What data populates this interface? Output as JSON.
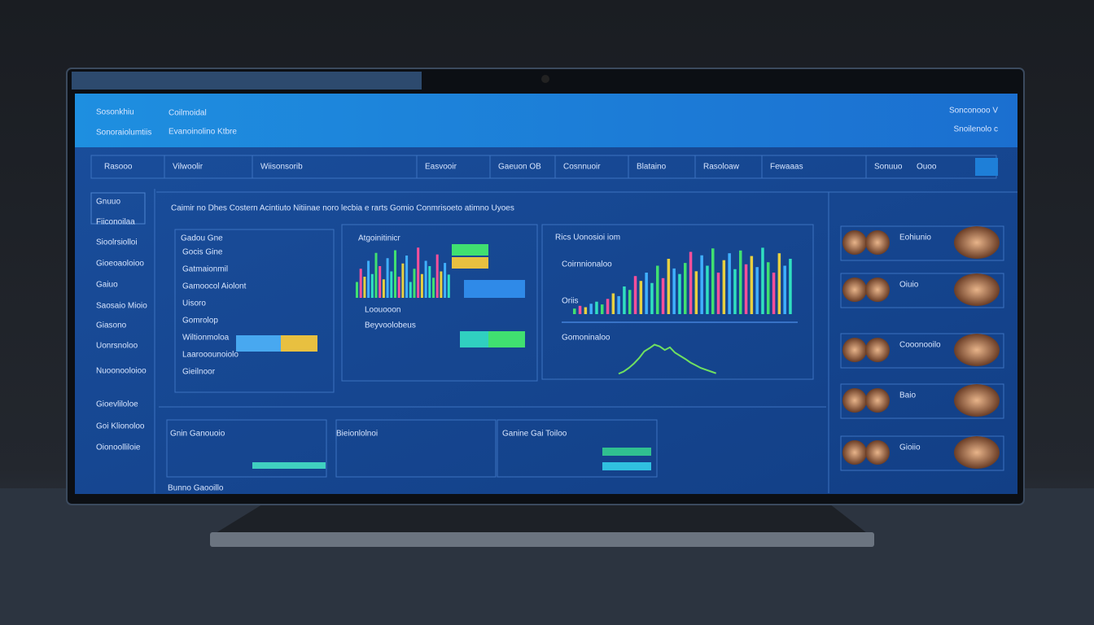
{
  "header": {
    "brand": "Sosonkhiu",
    "brand_sub": "Sonoraiolumtiis",
    "kicker": "Coilmoidal",
    "title": "Evanoinolino Ktbre",
    "user": "Sonconooo V",
    "user_sub": "Snoilenolo c"
  },
  "nav": [
    "Rasooo",
    "Vilwoolir",
    "Wiisonsorib",
    "Easvooir",
    "Gaeuon OB",
    "Cosnnuoir",
    "Blataino",
    "Rasoloaw",
    "Fewaaas",
    "Sonuuo",
    "Ouoo"
  ],
  "sidebar": [
    "Gnuuo",
    "Fiiconoilaa",
    "Sioolrsiolloi",
    "Gioeoaoloioo",
    "Gaiuo",
    "Saosaio Mioio",
    "Giasono",
    "Uonrsnoloo",
    "Nuoonooloioo",
    "Gioevliloloe",
    "Goi Klionoloo",
    "Oionoolliloie"
  ],
  "main": {
    "title": "Caimir no Dhes Costern Acintiuto Nitiinae noro lecbia e rarts Gomio Conmrisoeto atimno Uyoes",
    "panels": [
      {
        "title": "Gadou Gne",
        "labels": [
          "Gocis Gine",
          "Gatmaionmil",
          "Gamoocol Aiolont",
          "Uisoro",
          "Gomrolop",
          "Wiltionmoloa",
          "Laarooounoiolo",
          "Gieilnoor"
        ]
      },
      {
        "title": "Atgoinitinicr",
        "labels": [
          "Loouooon",
          "Beyvoolobeus"
        ],
        "bars": [
          30,
          55,
          40,
          70,
          45,
          85,
          60,
          35,
          75,
          50,
          90,
          40,
          65,
          80,
          30,
          55,
          95,
          45,
          70,
          60,
          38,
          82,
          50,
          66,
          44
        ]
      },
      {
        "title": "Rics Uonosioi iom",
        "labels": [
          "Coirnnionaloo",
          "Oriis",
          "Gomoninaloo"
        ],
        "bars": [
          8,
          12,
          10,
          15,
          18,
          14,
          22,
          30,
          26,
          40,
          35,
          55,
          48,
          60,
          45,
          70,
          52,
          80,
          66,
          58,
          74,
          90,
          62,
          85,
          70,
          95,
          60,
          78,
          88,
          65,
          92,
          72,
          84,
          68,
          96,
          75,
          60,
          88,
          70,
          80
        ],
        "wave": [
          5,
          10,
          18,
          28,
          40,
          55,
          62,
          70,
          66,
          58,
          64,
          52,
          45,
          38,
          30,
          24,
          18,
          14,
          10,
          6
        ]
      }
    ]
  },
  "bottom": [
    "Gnin Ganouoio",
    "Bieionlolnoi",
    "Ganine Gai Toiloo"
  ],
  "people": [
    "Eohiunio",
    "Oiuio",
    "Cooonooilo",
    "Baio",
    "Gioiio"
  ],
  "footer": "Bunno Gaooillo"
}
